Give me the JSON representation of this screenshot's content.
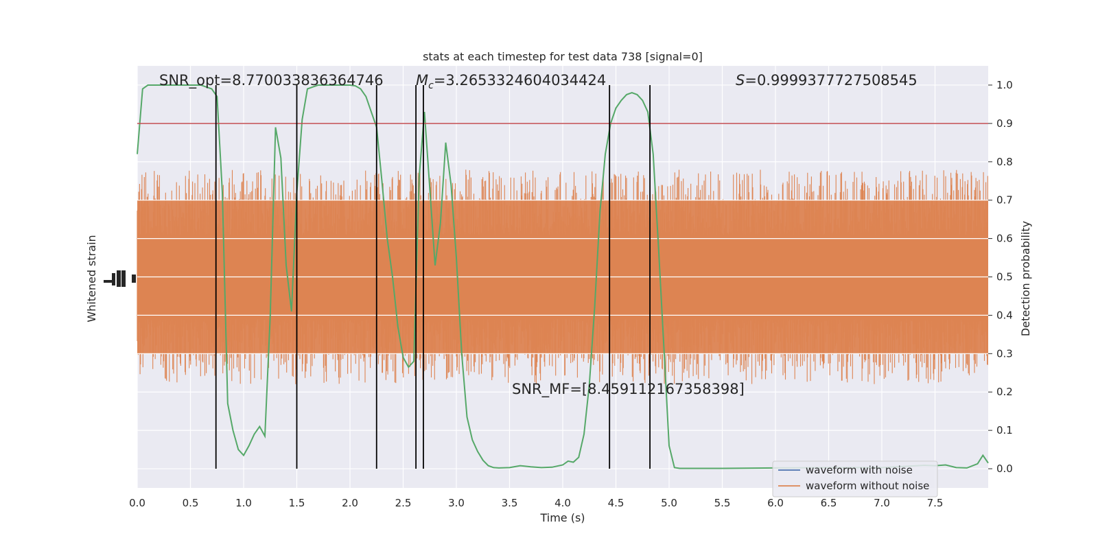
{
  "chart_data": {
    "type": "line",
    "title": "stats at each timestep for test data 738 [signal=0]",
    "xlabel": "Time (s)",
    "ylabel_left": "Whitened strain",
    "ylabel_right": "Detection probability",
    "xlim": [
      0,
      8
    ],
    "ylim_right": [
      -0.05,
      1.05
    ],
    "x_ticks": [
      "0.0",
      "0.5",
      "1.0",
      "1.5",
      "2.0",
      "2.5",
      "3.0",
      "3.5",
      "4.0",
      "4.5",
      "5.0",
      "5.5",
      "6.0",
      "6.5",
      "7.0",
      "7.5"
    ],
    "y_ticks_right": [
      "0.0",
      "0.1",
      "0.2",
      "0.3",
      "0.4",
      "0.5",
      "0.6",
      "0.7",
      "0.8",
      "0.9",
      "1.0"
    ],
    "grid": true,
    "threshold": 0.9,
    "annotations": {
      "snr_opt": "SNR_opt=8.770033836364746",
      "mc_symbol": "M",
      "mc_sub": "c",
      "mc_value": "=3.2653324604034424",
      "s_symbol": "S",
      "s_value": "=0.9999377727508545",
      "snr_mf": "SNR_MF=[8.459112167358398]"
    },
    "vertical_lines": [
      0.74,
      1.5,
      2.25,
      2.62,
      2.69,
      4.44,
      4.82
    ],
    "series": [
      {
        "name": "waveform with noise",
        "color": "#4c72b0"
      },
      {
        "name": "waveform without noise",
        "color": "#dd8452"
      },
      {
        "color": "#55a868",
        "x": [
          0.0,
          0.05,
          0.1,
          0.2,
          0.3,
          0.4,
          0.5,
          0.6,
          0.65,
          0.7,
          0.75,
          0.8,
          0.85,
          0.9,
          0.95,
          1.0,
          1.05,
          1.1,
          1.15,
          1.2,
          1.25,
          1.3,
          1.35,
          1.4,
          1.45,
          1.5,
          1.55,
          1.6,
          1.7,
          1.8,
          1.9,
          2.0,
          2.05,
          2.1,
          2.15,
          2.2,
          2.25,
          2.3,
          2.35,
          2.4,
          2.45,
          2.5,
          2.55,
          2.6,
          2.65,
          2.7,
          2.75,
          2.8,
          2.85,
          2.9,
          2.95,
          3.0,
          3.05,
          3.1,
          3.15,
          3.2,
          3.25,
          3.3,
          3.35,
          3.4,
          3.5,
          3.6,
          3.7,
          3.8,
          3.9,
          4.0,
          4.05,
          4.1,
          4.15,
          4.2,
          4.25,
          4.3,
          4.35,
          4.4,
          4.45,
          4.5,
          4.55,
          4.6,
          4.65,
          4.7,
          4.75,
          4.8,
          4.85,
          4.9,
          4.95,
          5.0,
          5.05,
          5.1,
          5.5,
          6.0,
          6.5,
          7.0,
          7.2,
          7.4,
          7.5,
          7.6,
          7.7,
          7.8,
          7.9,
          7.95,
          8.0
        ],
        "y": [
          0.82,
          0.99,
          1.0,
          1.0,
          1.0,
          1.0,
          1.0,
          1.0,
          0.995,
          0.99,
          0.97,
          0.72,
          0.17,
          0.1,
          0.05,
          0.035,
          0.06,
          0.09,
          0.11,
          0.085,
          0.4,
          0.89,
          0.81,
          0.53,
          0.41,
          0.72,
          0.91,
          0.99,
          1.0,
          1.0,
          1.0,
          1.0,
          0.998,
          0.99,
          0.97,
          0.93,
          0.89,
          0.75,
          0.6,
          0.5,
          0.37,
          0.29,
          0.265,
          0.28,
          0.76,
          0.93,
          0.73,
          0.53,
          0.64,
          0.85,
          0.74,
          0.55,
          0.3,
          0.135,
          0.075,
          0.045,
          0.022,
          0.008,
          0.003,
          0.002,
          0.003,
          0.008,
          0.005,
          0.003,
          0.004,
          0.01,
          0.02,
          0.017,
          0.03,
          0.09,
          0.22,
          0.42,
          0.67,
          0.82,
          0.9,
          0.94,
          0.96,
          0.975,
          0.98,
          0.975,
          0.96,
          0.93,
          0.82,
          0.58,
          0.32,
          0.06,
          0.003,
          0.001,
          0.001,
          0.002,
          0.003,
          0.003,
          0.006,
          0.009,
          0.008,
          0.01,
          0.003,
          0.002,
          0.013,
          0.035,
          0.015
        ]
      }
    ]
  }
}
